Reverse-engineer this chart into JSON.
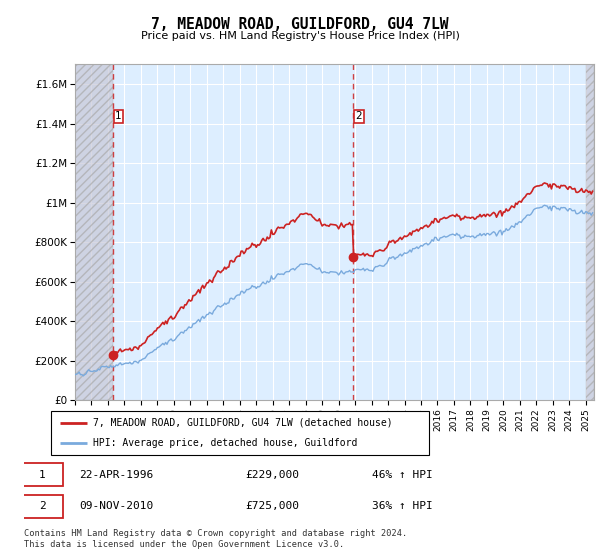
{
  "title": "7, MEADOW ROAD, GUILDFORD, GU4 7LW",
  "subtitle": "Price paid vs. HM Land Registry's House Price Index (HPI)",
  "sale1_date": "22-APR-1996",
  "sale1_price": 229000,
  "sale1_label": "46% ↑ HPI",
  "sale2_date": "09-NOV-2010",
  "sale2_price": 725000,
  "sale2_label": "36% ↑ HPI",
  "legend_line1": "7, MEADOW ROAD, GUILDFORD, GU4 7LW (detached house)",
  "legend_line2": "HPI: Average price, detached house, Guildford",
  "footer": "Contains HM Land Registry data © Crown copyright and database right 2024.\nThis data is licensed under the Open Government Licence v3.0.",
  "hpi_color": "#7aaadd",
  "price_color": "#cc2222",
  "bg_color": "#ddeeff",
  "ylim": [
    0,
    1700000
  ],
  "yticks": [
    0,
    200000,
    400000,
    600000,
    800000,
    1000000,
    1200000,
    1400000,
    1600000
  ],
  "xlim_start": 1994.0,
  "xlim_end": 2025.5,
  "hatch_end": 2025.0,
  "sale1_year": 1996.29,
  "sale2_year": 2010.87
}
